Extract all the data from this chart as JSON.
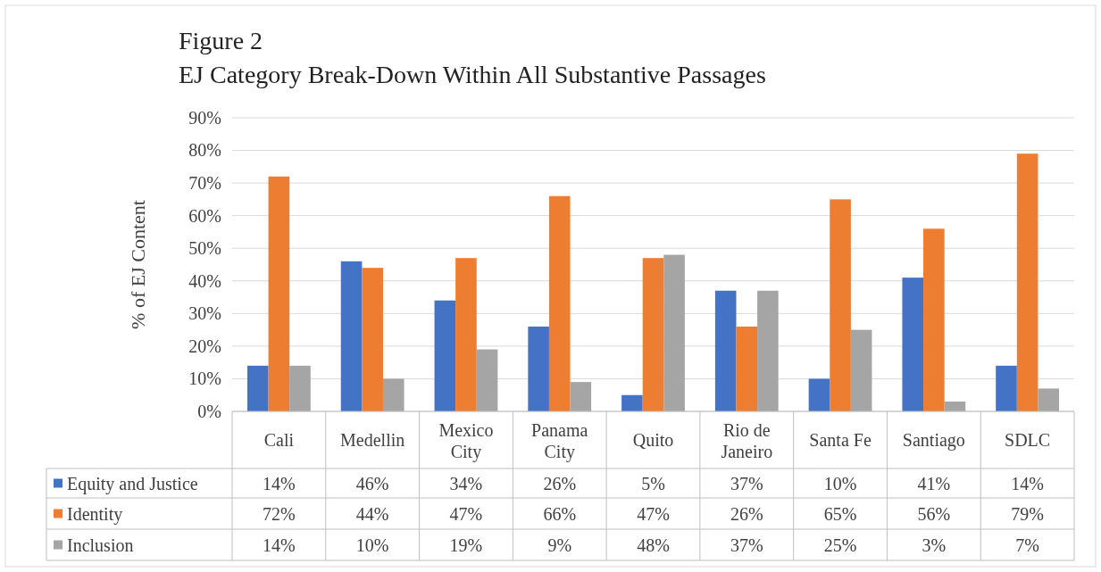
{
  "chart_data": {
    "type": "bar",
    "title": "Figure 2",
    "subtitle": "EJ Category Break-Down Within All Substantive Passages",
    "ylabel": "% of EJ Content",
    "categories": [
      "Cali",
      "Medellin",
      "Mexico City",
      "Panama City",
      "Quito",
      "Rio de Janeiro",
      "Santa Fe",
      "Santiago",
      "SDLC"
    ],
    "series": [
      {
        "name": "Equity and Justice",
        "color": "#4472c4",
        "values": [
          14,
          46,
          34,
          26,
          5,
          37,
          10,
          41,
          14
        ],
        "value_labels": [
          "14%",
          "46%",
          "34%",
          "26%",
          "5%",
          "37%",
          "10%",
          "41%",
          "14%"
        ]
      },
      {
        "name": "Identity",
        "color": "#ed7d31",
        "values": [
          72,
          44,
          47,
          66,
          47,
          26,
          65,
          56,
          79
        ],
        "value_labels": [
          "72%",
          "44%",
          "47%",
          "66%",
          "47%",
          "26%",
          "65%",
          "56%",
          "79%"
        ]
      },
      {
        "name": "Inclusion",
        "color": "#a5a5a5",
        "values": [
          14,
          10,
          19,
          9,
          48,
          37,
          25,
          3,
          7
        ],
        "value_labels": [
          "14%",
          "10%",
          "19%",
          "9%",
          "48%",
          "37%",
          "25%",
          "3%",
          "7%"
        ]
      }
    ],
    "ylim": [
      0,
      90
    ],
    "yticks": [
      {
        "value": 0,
        "label": "0%"
      },
      {
        "value": 10,
        "label": "10%"
      },
      {
        "value": 20,
        "label": "20%"
      },
      {
        "value": 30,
        "label": "30%"
      },
      {
        "value": 40,
        "label": "40%"
      },
      {
        "value": 50,
        "label": "50%"
      },
      {
        "value": 60,
        "label": "60%"
      },
      {
        "value": 70,
        "label": "70%"
      },
      {
        "value": 80,
        "label": "80%"
      },
      {
        "value": 90,
        "label": "90%"
      }
    ],
    "grid": "y",
    "legend": "bottom"
  }
}
